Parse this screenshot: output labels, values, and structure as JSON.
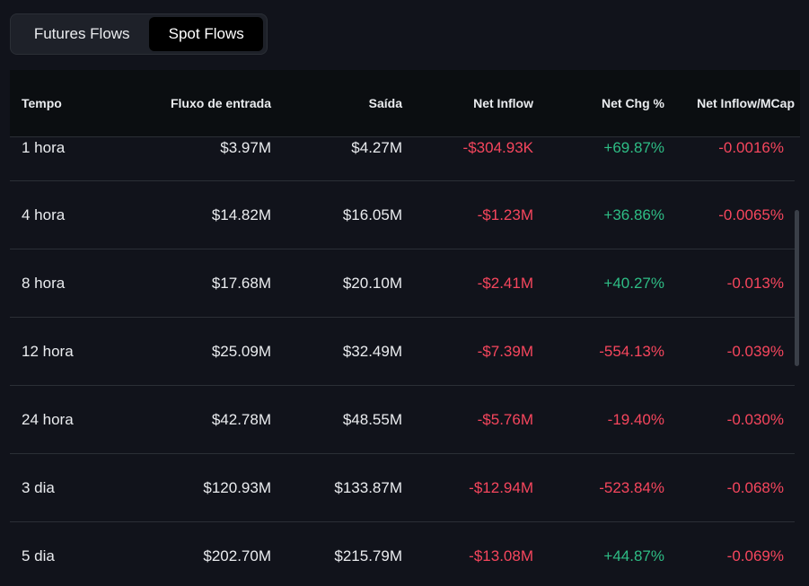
{
  "tabs": [
    {
      "label": "Futures Flows",
      "active": false
    },
    {
      "label": "Spot Flows",
      "active": true
    }
  ],
  "table": {
    "headers": [
      "Tempo",
      "Fluxo de entrada",
      "Saída",
      "Net Inflow",
      "Net Chg %",
      "Net Inflow/MCap"
    ],
    "rows": [
      {
        "tempo": "1 hora",
        "inflow": "$3.97M",
        "outflow": "$4.27M",
        "net_inflow": "-$304.93K",
        "net_chg": "+69.87%",
        "net_mcap": "-0.0016%"
      },
      {
        "tempo": "4 hora",
        "inflow": "$14.82M",
        "outflow": "$16.05M",
        "net_inflow": "-$1.23M",
        "net_chg": "+36.86%",
        "net_mcap": "-0.0065%"
      },
      {
        "tempo": "8 hora",
        "inflow": "$17.68M",
        "outflow": "$20.10M",
        "net_inflow": "-$2.41M",
        "net_chg": "+40.27%",
        "net_mcap": "-0.013%"
      },
      {
        "tempo": "12 hora",
        "inflow": "$25.09M",
        "outflow": "$32.49M",
        "net_inflow": "-$7.39M",
        "net_chg": "-554.13%",
        "net_mcap": "-0.039%"
      },
      {
        "tempo": "24 hora",
        "inflow": "$42.78M",
        "outflow": "$48.55M",
        "net_inflow": "-$5.76M",
        "net_chg": "-19.40%",
        "net_mcap": "-0.030%"
      },
      {
        "tempo": "3 dia",
        "inflow": "$120.93M",
        "outflow": "$133.87M",
        "net_inflow": "-$12.94M",
        "net_chg": "-523.84%",
        "net_mcap": "-0.068%"
      },
      {
        "tempo": "5 dia",
        "inflow": "$202.70M",
        "outflow": "$215.79M",
        "net_inflow": "-$13.08M",
        "net_chg": "+44.87%",
        "net_mcap": "-0.069%"
      }
    ]
  },
  "colors": {
    "positive": "#2ebd85",
    "negative": "#f6465d",
    "background": "#11131b",
    "header_background": "#0b0e11"
  }
}
